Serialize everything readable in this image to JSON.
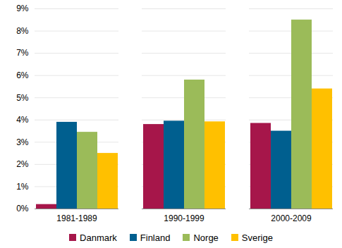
{
  "chart_data": {
    "type": "bar",
    "categories": [
      "1981-1989",
      "1990-1999",
      "2000-2009"
    ],
    "series": [
      {
        "name": "Danmark",
        "color": "#A6164A",
        "values": [
          0.2,
          3.8,
          3.85
        ]
      },
      {
        "name": "Finland",
        "color": "#005F8F",
        "values": [
          3.9,
          3.95,
          3.5
        ]
      },
      {
        "name": "Norge",
        "color": "#9BBB59",
        "values": [
          3.45,
          5.8,
          8.5
        ]
      },
      {
        "name": "Sverige",
        "color": "#FFC000",
        "values": [
          2.5,
          3.92,
          5.4
        ]
      }
    ],
    "ylim": [
      0,
      9
    ],
    "yticks": [
      {
        "value": 0,
        "label": "0%"
      },
      {
        "value": 1,
        "label": "1%"
      },
      {
        "value": 2,
        "label": "2%"
      },
      {
        "value": 3,
        "label": "3%"
      },
      {
        "value": 4,
        "label": "4%"
      },
      {
        "value": 5,
        "label": "5%"
      },
      {
        "value": 6,
        "label": "6%"
      },
      {
        "value": 7,
        "label": "7%"
      },
      {
        "value": 8,
        "label": "8%"
      },
      {
        "value": 9,
        "label": "9%"
      }
    ],
    "grid": true,
    "legend": "bottom"
  }
}
